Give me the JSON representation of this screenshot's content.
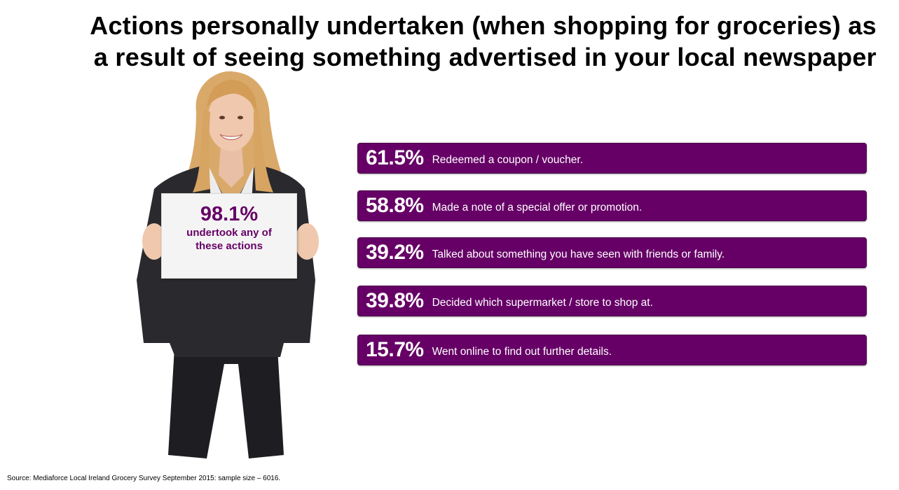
{
  "title": {
    "line1": "Actions personally undertaken (when shopping for groceries) as",
    "line2": "a result of seeing something advertised in your local newspaper"
  },
  "sign": {
    "percent": "98.1%",
    "text": "undertook any of these actions"
  },
  "stats": [
    {
      "percent": "61.5%",
      "label": "Redeemed a coupon / voucher."
    },
    {
      "percent": "58.8%",
      "label": "Made a note of a special offer or promotion."
    },
    {
      "percent": "39.2%",
      "label": "Talked about something you have seen with friends or family."
    },
    {
      "percent": "39.8%",
      "label": "Decided which supermarket / store to shop at."
    },
    {
      "percent": "15.7%",
      "label": "Went online to find out further details."
    }
  ],
  "source": "Source: Mediaforce Local Ireland Grocery Survey September 2015: sample size – 6016.",
  "colors": {
    "accent": "#660066",
    "bar_text": "#ffffff",
    "title_text": "#000000"
  }
}
